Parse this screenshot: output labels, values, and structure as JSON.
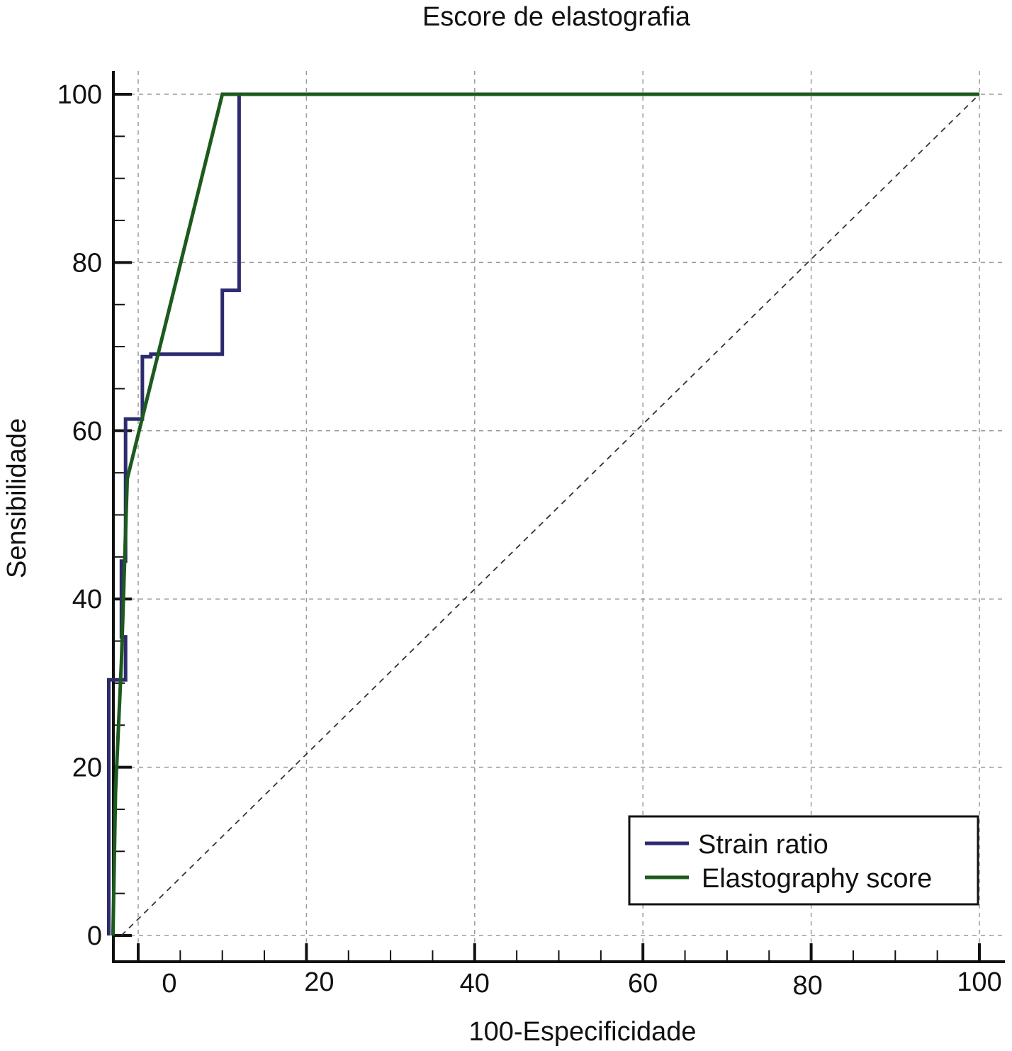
{
  "chart_data": {
    "type": "line",
    "title": "Escore de elastografia",
    "xlabel": "100-Especificidade",
    "ylabel": "Sensibilidade",
    "xlim": [
      -7,
      104
    ],
    "ylim": [
      -3,
      103
    ],
    "xticks": [
      0,
      20,
      40,
      60,
      80,
      100
    ],
    "yticks": [
      0,
      20,
      40,
      60,
      80,
      100
    ],
    "grid": true,
    "legend_position": "bottom-right",
    "series": [
      {
        "name": "Strain ratio",
        "color": "#2e2a6e",
        "x": [
          -3.5,
          -3.5,
          -1.5,
          -1.5,
          -2,
          -2,
          -1.5,
          -1.5,
          0.5,
          0.5,
          1.5,
          1.5,
          10,
          10,
          12,
          12,
          100
        ],
        "y": [
          0,
          30.4,
          30.4,
          35.5,
          35.5,
          44.5,
          44.5,
          61.4,
          61.4,
          68.8,
          68.8,
          69.1,
          69.1,
          76.7,
          76.7,
          100,
          100
        ]
      },
      {
        "name": "Elastography score",
        "color": "#1d5a1d",
        "x": [
          -3,
          -2.7,
          -2,
          -1.3,
          10,
          100
        ],
        "y": [
          0,
          17,
          32.5,
          54.3,
          100,
          100
        ]
      },
      {
        "name": "",
        "color": "#333333",
        "dashed": true,
        "x": [
          -2,
          100
        ],
        "y": [
          0,
          100
        ]
      }
    ]
  }
}
